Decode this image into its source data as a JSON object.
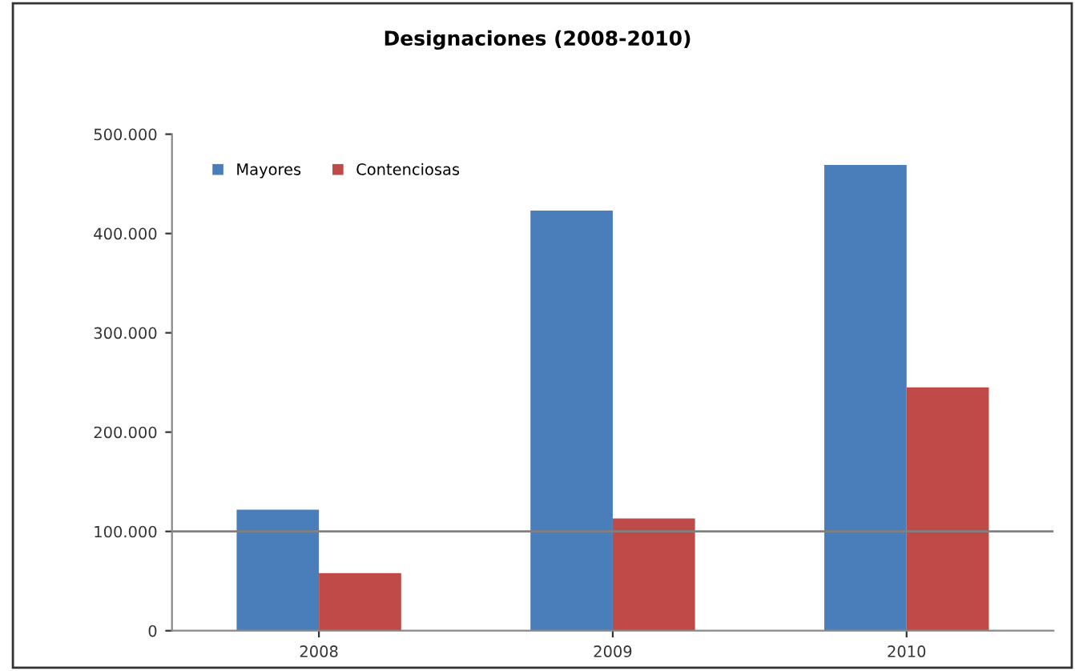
{
  "chart_data": {
    "type": "bar",
    "title": "Designaciones (2008-2010)",
    "categories": [
      "2008",
      "2009",
      "2010"
    ],
    "series": [
      {
        "name": "Mayores",
        "color": "#4a7ebb",
        "values": [
          122000,
          423000,
          469000
        ]
      },
      {
        "name": "Contenciosas",
        "color": "#be4b48",
        "values": [
          58000,
          113000,
          245000
        ]
      }
    ],
    "ylim": [
      0,
      500000
    ],
    "yticks": [
      {
        "value": 0,
        "label": "0"
      },
      {
        "value": 100000,
        "label": "100.000"
      },
      {
        "value": 200000,
        "label": "200.000"
      },
      {
        "value": 300000,
        "label": "300.000"
      },
      {
        "value": 400000,
        "label": "400.000"
      },
      {
        "value": 500000,
        "label": "500.000"
      }
    ],
    "ref_lines": [
      {
        "axis": "y",
        "value": 100000,
        "label": null,
        "color": "#808080"
      }
    ],
    "grid": false,
    "legend": "top left"
  }
}
